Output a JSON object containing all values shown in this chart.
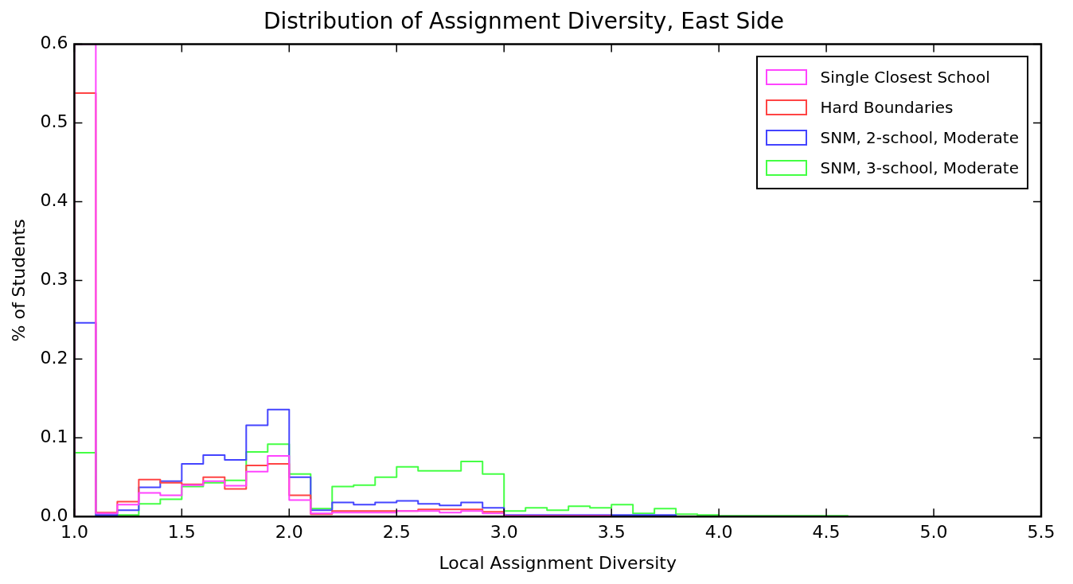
{
  "chart_data": {
    "type": "histogram",
    "title": "Distribution of Assignment Diversity, East Side",
    "xlabel": "Local Assignment Diversity",
    "ylabel": "% of Students",
    "bins": [
      1.0,
      1.1,
      1.2,
      1.3,
      1.4,
      1.5,
      1.6,
      1.7,
      1.8,
      1.9,
      2.0,
      2.1,
      2.2,
      2.3,
      2.4,
      2.5,
      2.6,
      2.7,
      2.8,
      2.9,
      3.0,
      3.1,
      3.2,
      3.3,
      3.4,
      3.5,
      3.6,
      3.7,
      3.8,
      3.9,
      4.0,
      4.1,
      4.2,
      4.3,
      4.4,
      4.5,
      4.6,
      4.7,
      4.8,
      4.9,
      5.0,
      5.1,
      5.2,
      5.3,
      5.4,
      5.5
    ],
    "series": [
      {
        "name": "Single Closest School",
        "color": "#ff44ff",
        "values": [
          0.6,
          0.004,
          0.015,
          0.03,
          0.027,
          0.04,
          0.045,
          0.039,
          0.057,
          0.077,
          0.021,
          0.004,
          0.005,
          0.005,
          0.005,
          0.007,
          0.007,
          0.005,
          0.007,
          0.004,
          0.001,
          0.001,
          0.001,
          0.001,
          0.001,
          0,
          0,
          0,
          0,
          0,
          0,
          0,
          0,
          0,
          0,
          0,
          0,
          0,
          0,
          0,
          0,
          0,
          0,
          0,
          0
        ]
      },
      {
        "name": "Hard Boundaries",
        "color": "#ff4444",
        "values": [
          0.538,
          0.005,
          0.019,
          0.047,
          0.043,
          0.041,
          0.05,
          0.035,
          0.065,
          0.067,
          0.027,
          0.003,
          0.007,
          0.007,
          0.007,
          0.007,
          0.009,
          0.009,
          0.009,
          0.006,
          0.001,
          0.001,
          0.001,
          0.001,
          0.001,
          0,
          0,
          0,
          0,
          0,
          0,
          0,
          0,
          0,
          0,
          0,
          0,
          0,
          0,
          0,
          0,
          0,
          0,
          0,
          0
        ]
      },
      {
        "name": "SNM, 2-school, Moderate",
        "color": "#4444ff",
        "values": [
          0.246,
          0.002,
          0.008,
          0.037,
          0.045,
          0.067,
          0.078,
          0.072,
          0.116,
          0.136,
          0.05,
          0.008,
          0.018,
          0.015,
          0.018,
          0.02,
          0.016,
          0.014,
          0.018,
          0.011,
          0.002,
          0.002,
          0.002,
          0.002,
          0.002,
          0.002,
          0.002,
          0.002,
          0,
          0,
          0,
          0,
          0,
          0,
          0,
          0,
          0,
          0,
          0,
          0,
          0,
          0,
          0,
          0,
          0
        ]
      },
      {
        "name": "SNM, 3-school, Moderate",
        "color": "#44ff44",
        "values": [
          0.081,
          0.002,
          0.002,
          0.016,
          0.022,
          0.038,
          0.043,
          0.046,
          0.082,
          0.092,
          0.054,
          0.01,
          0.038,
          0.04,
          0.05,
          0.063,
          0.058,
          0.058,
          0.07,
          0.054,
          0.007,
          0.011,
          0.008,
          0.013,
          0.011,
          0.015,
          0.004,
          0.01,
          0.003,
          0.002,
          0.001,
          0.001,
          0.001,
          0.001,
          0.001,
          0.001,
          0,
          0,
          0,
          0,
          0,
          0,
          0,
          0,
          0
        ]
      }
    ],
    "xlim": [
      1.0,
      5.5
    ],
    "xticks": [
      {
        "value": 1,
        "label": "1.0"
      },
      1.5,
      {
        "value": 2,
        "label": "2.0"
      },
      2.5,
      {
        "value": 3,
        "label": "3.0"
      },
      3.5,
      {
        "value": 4,
        "label": "4.0"
      },
      4.5,
      {
        "value": 5,
        "label": "5.0"
      },
      5.5
    ],
    "ylim": [
      0,
      0.6
    ],
    "yticks": [
      {
        "value": 0,
        "label": "0.0"
      },
      0.1,
      0.2,
      0.3,
      0.4,
      0.5,
      0.6
    ],
    "grid": false,
    "legend": "top right"
  }
}
